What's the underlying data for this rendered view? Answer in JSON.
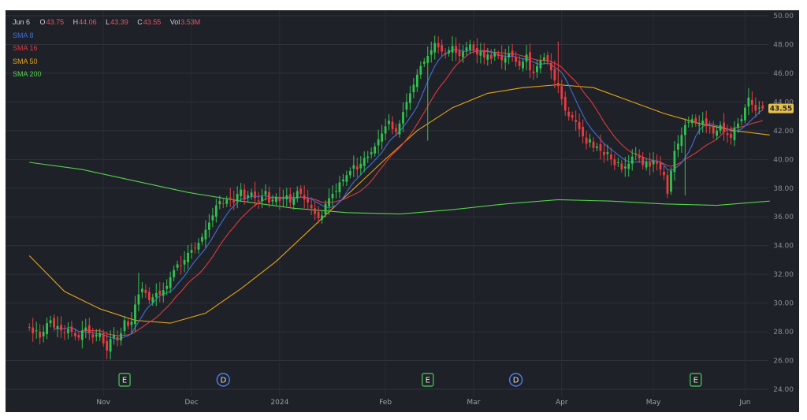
{
  "header": {
    "date": "Jun 6",
    "open_label": "O",
    "open": "43.75",
    "high_label": "H",
    "high": "44.06",
    "low_label": "L",
    "low": "43.39",
    "close_label": "C",
    "close": "43.55",
    "volume_label": "Vol",
    "volume": "3.53M"
  },
  "indicators": [
    {
      "label": "SMA 8",
      "color": "#3d6fdc"
    },
    {
      "label": "SMA 16",
      "color": "#e0393e"
    },
    {
      "label": "SMA 50",
      "color": "#e8a317"
    },
    {
      "label": "SMA 200",
      "color": "#54d34a"
    }
  ],
  "events": [
    {
      "label": "E",
      "date_index": 27,
      "color": "#3fb950"
    },
    {
      "label": "D",
      "date_index": 55,
      "color": "#4a7ef2"
    },
    {
      "label": "E",
      "date_index": 113,
      "color": "#3fb950"
    },
    {
      "label": "D",
      "date_index": 138,
      "color": "#4a7ef2"
    },
    {
      "label": "E",
      "date_index": 189,
      "color": "#3fb950"
    }
  ],
  "last_price_badge": "43.55",
  "colors": {
    "up": "#33c24f",
    "down": "#ec3b3f",
    "background": "#1f2128",
    "badge": "#e8c14d"
  },
  "chart_data": {
    "type": "candlestick",
    "title": "",
    "ylim": [
      24,
      50
    ],
    "yticks": [
      "24.00",
      "26.00",
      "28.00",
      "30.00",
      "32.00",
      "34.00",
      "36.00",
      "38.00",
      "40.00",
      "42.00",
      "44.00",
      "46.00",
      "48.00",
      "50.00"
    ],
    "xticks": [
      {
        "label": "Nov",
        "index": 21
      },
      {
        "label": "Dec",
        "index": 46
      },
      {
        "label": "2024",
        "index": 71
      },
      {
        "label": "Feb",
        "index": 101
      },
      {
        "label": "Mar",
        "index": 126
      },
      {
        "label": "Apr",
        "index": 151
      },
      {
        "label": "May",
        "index": 177
      },
      {
        "label": "Jun",
        "index": 203
      }
    ],
    "close": [
      28.3,
      27.9,
      28.1,
      27.6,
      28.0,
      28.6,
      28.8,
      28.3,
      28.4,
      28.1,
      27.9,
      28.2,
      28.0,
      27.7,
      27.6,
      28.1,
      28.3,
      27.9,
      27.6,
      27.8,
      27.9,
      27.2,
      26.7,
      27.5,
      27.8,
      27.4,
      27.9,
      28.8,
      28.4,
      28.7,
      29.9,
      30.6,
      31.0,
      30.7,
      30.2,
      30.4,
      30.7,
      30.6,
      30.9,
      31.2,
      31.8,
      32.3,
      32.7,
      32.6,
      33.0,
      33.5,
      33.7,
      33.8,
      34.2,
      34.6,
      35.1,
      35.6,
      36.1,
      36.8,
      37.1,
      36.9,
      37.2,
      37.3,
      37.0,
      37.6,
      37.9,
      37.2,
      37.5,
      37.7,
      37.3,
      37.1,
      37.4,
      37.8,
      37.0,
      37.2,
      37.4,
      37.1,
      37.3,
      37.5,
      37.0,
      37.3,
      37.8,
      37.6,
      37.2,
      37.0,
      36.6,
      36.2,
      35.9,
      36.1,
      36.9,
      37.3,
      37.6,
      37.8,
      38.4,
      38.6,
      38.9,
      39.2,
      39.6,
      39.3,
      39.7,
      40.1,
      40.2,
      40.5,
      40.9,
      41.4,
      41.8,
      42.3,
      42.7,
      42.1,
      41.9,
      42.5,
      43.3,
      44.0,
      44.6,
      45.2,
      45.9,
      46.5,
      46.8,
      47.2,
      47.6,
      48.1,
      47.8,
      47.5,
      47.3,
      47.6,
      47.9,
      47.4,
      47.2,
      47.5,
      47.8,
      48.0,
      47.6,
      47.3,
      47.5,
      47.1,
      47.3,
      47.0,
      47.4,
      47.2,
      46.9,
      47.1,
      47.4,
      47.2,
      46.8,
      46.5,
      46.8,
      47.3,
      46.2,
      46.0,
      46.5,
      46.9,
      47.1,
      46.8,
      46.2,
      45.5,
      45.1,
      44.2,
      43.4,
      43.0,
      42.9,
      42.6,
      42.1,
      41.6,
      41.1,
      41.4,
      40.8,
      40.9,
      40.6,
      40.3,
      40.5,
      40.0,
      39.6,
      39.8,
      39.3,
      39.5,
      39.7,
      40.2,
      40.4,
      40.1,
      39.6,
      39.8,
      39.5,
      39.9,
      39.7,
      39.3,
      38.9,
      37.6,
      39.2,
      40.6,
      41.1,
      41.7,
      42.4,
      42.6,
      42.8,
      42.5,
      42.4,
      42.7,
      42.3,
      42.2,
      41.8,
      42.0,
      42.4,
      41.9,
      41.7,
      41.5,
      42.2,
      42.5,
      42.8,
      43.6,
      44.3,
      43.8,
      43.4,
      43.6,
      43.55
    ],
    "series": [
      {
        "name": "SMA 8",
        "color": "#3d6fdc"
      },
      {
        "name": "SMA 16",
        "color": "#e0393e"
      },
      {
        "name": "SMA 50",
        "color": "#e8a317",
        "x": [
          0,
          10,
          20,
          30,
          40,
          50,
          60,
          70,
          80,
          90,
          100,
          110,
          120,
          130,
          140,
          150,
          160,
          170,
          180,
          190,
          200,
          210
        ],
        "values": [
          33.3,
          30.8,
          29.6,
          28.8,
          28.6,
          29.3,
          31.0,
          32.9,
          35.2,
          37.5,
          39.8,
          42.0,
          43.6,
          44.6,
          45.0,
          45.2,
          45.0,
          44.1,
          43.2,
          42.5,
          42.0,
          41.7
        ]
      },
      {
        "name": "SMA 200",
        "color": "#54d34a",
        "x": [
          0,
          15,
          30,
          45,
          60,
          75,
          90,
          105,
          120,
          135,
          150,
          165,
          180,
          195,
          210
        ],
        "values": [
          39.8,
          39.3,
          38.5,
          37.7,
          37.1,
          36.6,
          36.3,
          36.2,
          36.5,
          36.9,
          37.2,
          37.1,
          36.9,
          36.8,
          37.1
        ]
      }
    ]
  }
}
